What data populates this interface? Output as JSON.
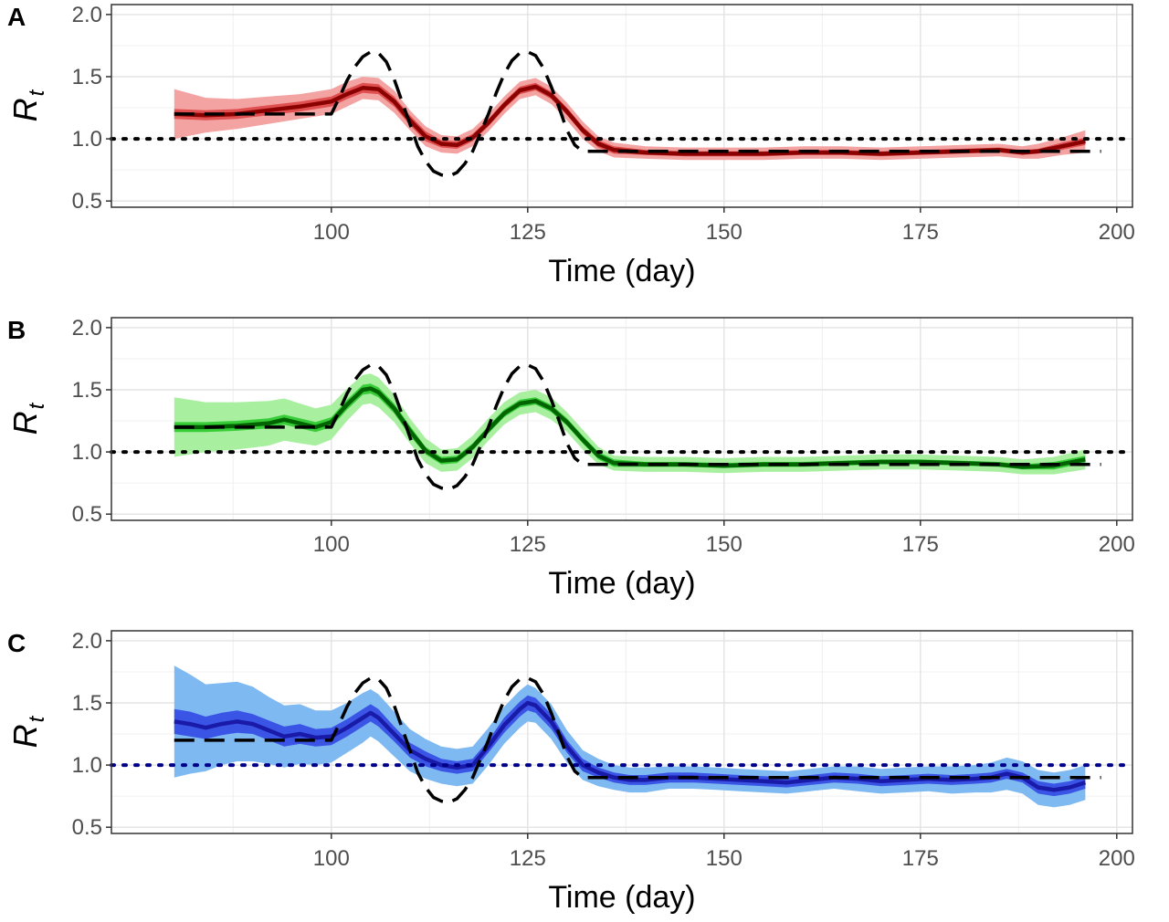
{
  "figure": {
    "panels": [
      "A",
      "B",
      "C"
    ]
  },
  "chart_data": [
    {
      "panel_label": "A",
      "type": "line",
      "xlabel": "Time (day)",
      "ylabel_main": "R",
      "ylabel_sub": "t",
      "xlim": [
        72,
        202
      ],
      "ylim": [
        0.45,
        2.08
      ],
      "xticks": [
        100,
        125,
        150,
        175,
        200
      ],
      "xtick_labels": [
        "100",
        "125",
        "150",
        "175",
        "200"
      ],
      "yticks": [
        0.5,
        1.0,
        1.5,
        2.0
      ],
      "ytick_labels": [
        "0.5",
        "1.0",
        "1.5",
        "2.0"
      ],
      "grid": true,
      "reference_line": 1.0,
      "reference_color": "#000000",
      "colors": {
        "outer": "#f4a3a3",
        "inner": "#e05050",
        "line": "#8b0000"
      },
      "true_rt": {
        "x": [
          80,
          100,
          101,
          102,
          103,
          104,
          105,
          106,
          107,
          108,
          109,
          110,
          111,
          112,
          113,
          114,
          115,
          116,
          117,
          118,
          119,
          120,
          121,
          122,
          123,
          124,
          125,
          126,
          127,
          128,
          129,
          130,
          131,
          132,
          133,
          134,
          198
        ],
        "y": [
          1.2,
          1.2,
          1.33,
          1.47,
          1.58,
          1.66,
          1.7,
          1.69,
          1.62,
          1.48,
          1.3,
          1.12,
          0.94,
          0.82,
          0.74,
          0.71,
          0.7,
          0.73,
          0.8,
          0.9,
          1.05,
          1.2,
          1.37,
          1.52,
          1.63,
          1.69,
          1.7,
          1.67,
          1.57,
          1.42,
          1.25,
          1.07,
          0.95,
          0.9,
          0.9,
          0.9,
          0.9
        ]
      },
      "estimate": {
        "x": [
          80,
          84,
          88,
          92,
          96,
          100,
          102,
          104,
          106,
          108,
          110,
          112,
          114,
          116,
          118,
          120,
          122,
          124,
          126,
          128,
          130,
          132,
          134,
          136,
          140,
          145,
          150,
          155,
          160,
          165,
          170,
          175,
          180,
          185,
          188,
          190,
          193,
          196
        ],
        "mean": [
          1.2,
          1.19,
          1.2,
          1.23,
          1.26,
          1.3,
          1.36,
          1.41,
          1.4,
          1.3,
          1.15,
          1.02,
          0.96,
          0.95,
          1.01,
          1.13,
          1.27,
          1.39,
          1.42,
          1.35,
          1.22,
          1.07,
          0.96,
          0.91,
          0.89,
          0.88,
          0.88,
          0.88,
          0.89,
          0.89,
          0.88,
          0.89,
          0.9,
          0.91,
          0.89,
          0.9,
          0.94,
          0.98
        ],
        "inner_half_width": [
          0.04,
          0.04,
          0.04,
          0.04,
          0.04,
          0.04,
          0.04,
          0.04,
          0.04,
          0.04,
          0.04,
          0.04,
          0.03,
          0.03,
          0.03,
          0.03,
          0.03,
          0.03,
          0.03,
          0.03,
          0.03,
          0.03,
          0.03,
          0.03,
          0.02,
          0.02,
          0.02,
          0.02,
          0.02,
          0.02,
          0.02,
          0.02,
          0.02,
          0.02,
          0.02,
          0.02,
          0.03,
          0.03
        ],
        "outer_half_width": [
          0.2,
          0.14,
          0.12,
          0.11,
          0.1,
          0.1,
          0.1,
          0.09,
          0.09,
          0.09,
          0.08,
          0.08,
          0.07,
          0.07,
          0.07,
          0.07,
          0.07,
          0.07,
          0.07,
          0.07,
          0.07,
          0.07,
          0.06,
          0.06,
          0.05,
          0.05,
          0.05,
          0.05,
          0.05,
          0.05,
          0.05,
          0.05,
          0.05,
          0.05,
          0.05,
          0.06,
          0.07,
          0.09
        ]
      }
    },
    {
      "panel_label": "B",
      "type": "line",
      "xlabel": "Time (day)",
      "ylabel_main": "R",
      "ylabel_sub": "t",
      "xlim": [
        72,
        202
      ],
      "ylim": [
        0.45,
        2.08
      ],
      "xticks": [
        100,
        125,
        150,
        175,
        200
      ],
      "xtick_labels": [
        "100",
        "125",
        "150",
        "175",
        "200"
      ],
      "yticks": [
        0.5,
        1.0,
        1.5,
        2.0
      ],
      "ytick_labels": [
        "0.5",
        "1.0",
        "1.5",
        "2.0"
      ],
      "grid": true,
      "reference_line": 1.0,
      "reference_color": "#000000",
      "colors": {
        "outer": "#a8f0a0",
        "inner": "#38cc38",
        "line": "#006400"
      },
      "true_rt": {
        "x": [
          80,
          100,
          101,
          102,
          103,
          104,
          105,
          106,
          107,
          108,
          109,
          110,
          111,
          112,
          113,
          114,
          115,
          116,
          117,
          118,
          119,
          120,
          121,
          122,
          123,
          124,
          125,
          126,
          127,
          128,
          129,
          130,
          131,
          132,
          133,
          134,
          198
        ],
        "y": [
          1.2,
          1.2,
          1.33,
          1.47,
          1.58,
          1.66,
          1.7,
          1.69,
          1.62,
          1.48,
          1.3,
          1.12,
          0.94,
          0.82,
          0.74,
          0.71,
          0.7,
          0.73,
          0.8,
          0.9,
          1.05,
          1.2,
          1.37,
          1.52,
          1.63,
          1.69,
          1.7,
          1.67,
          1.57,
          1.42,
          1.25,
          1.07,
          0.95,
          0.9,
          0.9,
          0.9,
          0.9
        ]
      },
      "estimate": {
        "x": [
          80,
          84,
          88,
          92,
          94,
          96,
          98,
          100,
          102,
          104,
          105,
          106,
          108,
          110,
          112,
          114,
          116,
          118,
          120,
          122,
          124,
          126,
          128,
          130,
          132,
          134,
          136,
          140,
          145,
          150,
          155,
          160,
          165,
          170,
          175,
          180,
          185,
          188,
          192,
          196
        ],
        "mean": [
          1.2,
          1.2,
          1.21,
          1.23,
          1.26,
          1.23,
          1.2,
          1.24,
          1.38,
          1.5,
          1.51,
          1.48,
          1.35,
          1.17,
          1.01,
          0.93,
          0.94,
          1.04,
          1.18,
          1.31,
          1.39,
          1.41,
          1.35,
          1.24,
          1.1,
          0.97,
          0.91,
          0.9,
          0.9,
          0.89,
          0.9,
          0.9,
          0.91,
          0.92,
          0.92,
          0.91,
          0.9,
          0.88,
          0.89,
          0.94
        ],
        "inner_half_width": [
          0.04,
          0.04,
          0.04,
          0.04,
          0.04,
          0.04,
          0.04,
          0.04,
          0.04,
          0.04,
          0.04,
          0.04,
          0.04,
          0.04,
          0.03,
          0.03,
          0.03,
          0.03,
          0.03,
          0.03,
          0.03,
          0.03,
          0.03,
          0.03,
          0.03,
          0.03,
          0.03,
          0.02,
          0.02,
          0.02,
          0.02,
          0.02,
          0.02,
          0.02,
          0.02,
          0.02,
          0.02,
          0.02,
          0.03,
          0.03
        ],
        "outer_half_width": [
          0.24,
          0.2,
          0.19,
          0.18,
          0.17,
          0.16,
          0.15,
          0.14,
          0.13,
          0.12,
          0.12,
          0.12,
          0.11,
          0.1,
          0.1,
          0.09,
          0.09,
          0.09,
          0.09,
          0.09,
          0.09,
          0.09,
          0.09,
          0.08,
          0.08,
          0.07,
          0.06,
          0.06,
          0.06,
          0.06,
          0.06,
          0.06,
          0.06,
          0.06,
          0.06,
          0.06,
          0.06,
          0.06,
          0.07,
          0.08
        ]
      }
    },
    {
      "panel_label": "C",
      "type": "line",
      "xlabel": "Time (day)",
      "ylabel_main": "R",
      "ylabel_sub": "t",
      "xlim": [
        72,
        202
      ],
      "ylim": [
        0.45,
        2.08
      ],
      "xticks": [
        100,
        125,
        150,
        175,
        200
      ],
      "xtick_labels": [
        "100",
        "125",
        "150",
        "175",
        "200"
      ],
      "yticks": [
        0.5,
        1.0,
        1.5,
        2.0
      ],
      "ytick_labels": [
        "0.5",
        "1.0",
        "1.5",
        "2.0"
      ],
      "grid": true,
      "reference_line": 1.0,
      "reference_color": "#00008b",
      "colors": {
        "outer": "#7fb9f2",
        "inner": "#3a55e6",
        "line": "#1a1aa8"
      },
      "true_rt": {
        "x": [
          80,
          100,
          101,
          102,
          103,
          104,
          105,
          106,
          107,
          108,
          109,
          110,
          111,
          112,
          113,
          114,
          115,
          116,
          117,
          118,
          119,
          120,
          121,
          122,
          123,
          124,
          125,
          126,
          127,
          128,
          129,
          130,
          131,
          132,
          133,
          134,
          198
        ],
        "y": [
          1.2,
          1.2,
          1.33,
          1.47,
          1.58,
          1.66,
          1.7,
          1.69,
          1.62,
          1.48,
          1.3,
          1.12,
          0.94,
          0.82,
          0.74,
          0.71,
          0.7,
          0.73,
          0.8,
          0.9,
          1.05,
          1.2,
          1.37,
          1.52,
          1.63,
          1.69,
          1.7,
          1.67,
          1.57,
          1.42,
          1.25,
          1.07,
          0.95,
          0.9,
          0.9,
          0.9,
          0.9
        ]
      },
      "estimate": {
        "x": [
          80,
          82,
          84,
          86,
          88,
          90,
          92,
          94,
          96,
          98,
          100,
          102,
          104,
          105,
          106,
          108,
          110,
          112,
          114,
          116,
          118,
          120,
          122,
          124,
          125,
          126,
          128,
          130,
          132,
          134,
          136,
          138,
          140,
          143,
          146,
          149,
          152,
          155,
          158,
          161,
          164,
          167,
          170,
          173,
          176,
          179,
          182,
          184,
          186,
          188,
          190,
          192,
          194,
          196
        ],
        "mean": [
          1.35,
          1.33,
          1.3,
          1.33,
          1.35,
          1.33,
          1.28,
          1.23,
          1.25,
          1.22,
          1.23,
          1.3,
          1.38,
          1.42,
          1.38,
          1.25,
          1.12,
          1.05,
          1.0,
          0.98,
          1.0,
          1.15,
          1.32,
          1.45,
          1.5,
          1.48,
          1.35,
          1.15,
          1.0,
          0.94,
          0.9,
          0.88,
          0.88,
          0.9,
          0.9,
          0.89,
          0.88,
          0.87,
          0.86,
          0.88,
          0.9,
          0.89,
          0.87,
          0.88,
          0.89,
          0.88,
          0.89,
          0.9,
          0.93,
          0.9,
          0.82,
          0.8,
          0.82,
          0.86
        ],
        "inner_half_width": [
          0.1,
          0.1,
          0.09,
          0.09,
          0.09,
          0.08,
          0.08,
          0.08,
          0.08,
          0.07,
          0.07,
          0.07,
          0.07,
          0.07,
          0.07,
          0.06,
          0.06,
          0.06,
          0.05,
          0.05,
          0.05,
          0.05,
          0.06,
          0.06,
          0.06,
          0.06,
          0.06,
          0.05,
          0.05,
          0.04,
          0.04,
          0.04,
          0.04,
          0.04,
          0.04,
          0.04,
          0.04,
          0.04,
          0.04,
          0.04,
          0.04,
          0.04,
          0.04,
          0.04,
          0.04,
          0.04,
          0.04,
          0.04,
          0.04,
          0.04,
          0.05,
          0.05,
          0.05,
          0.05
        ],
        "outer_half_width": [
          0.45,
          0.4,
          0.35,
          0.33,
          0.32,
          0.3,
          0.27,
          0.25,
          0.24,
          0.22,
          0.21,
          0.2,
          0.2,
          0.19,
          0.19,
          0.18,
          0.17,
          0.16,
          0.15,
          0.15,
          0.15,
          0.15,
          0.15,
          0.15,
          0.15,
          0.14,
          0.14,
          0.13,
          0.12,
          0.11,
          0.1,
          0.1,
          0.1,
          0.09,
          0.09,
          0.09,
          0.09,
          0.09,
          0.09,
          0.09,
          0.09,
          0.1,
          0.1,
          0.1,
          0.1,
          0.11,
          0.11,
          0.12,
          0.13,
          0.13,
          0.14,
          0.14,
          0.14,
          0.14
        ]
      }
    }
  ]
}
